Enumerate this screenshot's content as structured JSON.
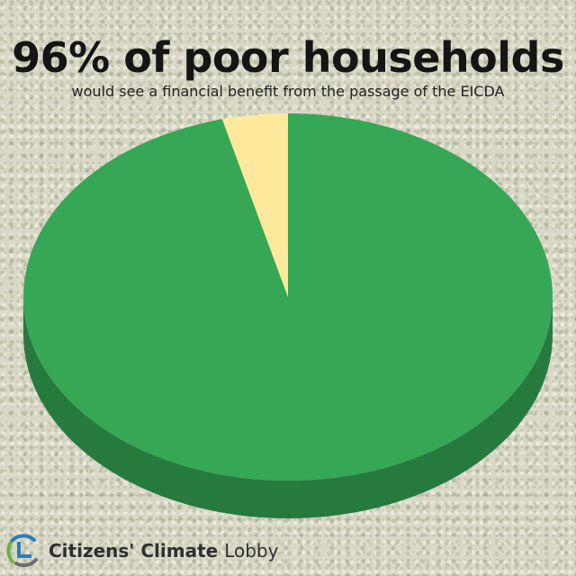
{
  "header": {
    "title": "96% of poor households",
    "subtitle": "would see a financial benefit from the passage of the EICDA"
  },
  "chart_data": {
    "type": "pie",
    "title": "96% of poor households",
    "subtitle": "would see a financial benefit from the passage of the EICDA",
    "slices": [
      {
        "label": "",
        "value": 96,
        "color": "#35a755",
        "side_color": "#277a3e"
      },
      {
        "label": "",
        "value": 4,
        "color": "#fee89c",
        "side_color": "#d8c27b"
      }
    ],
    "start_angle": "12 o'clock",
    "direction": "clockwise",
    "style": "3D perspective pie"
  },
  "branding": {
    "org_bold": "Citizens' Climate",
    "org_light": "Lobby",
    "colors": {
      "green": "#6cb33f",
      "blue": "#2a7dbf",
      "gray": "#6d6e71"
    }
  }
}
